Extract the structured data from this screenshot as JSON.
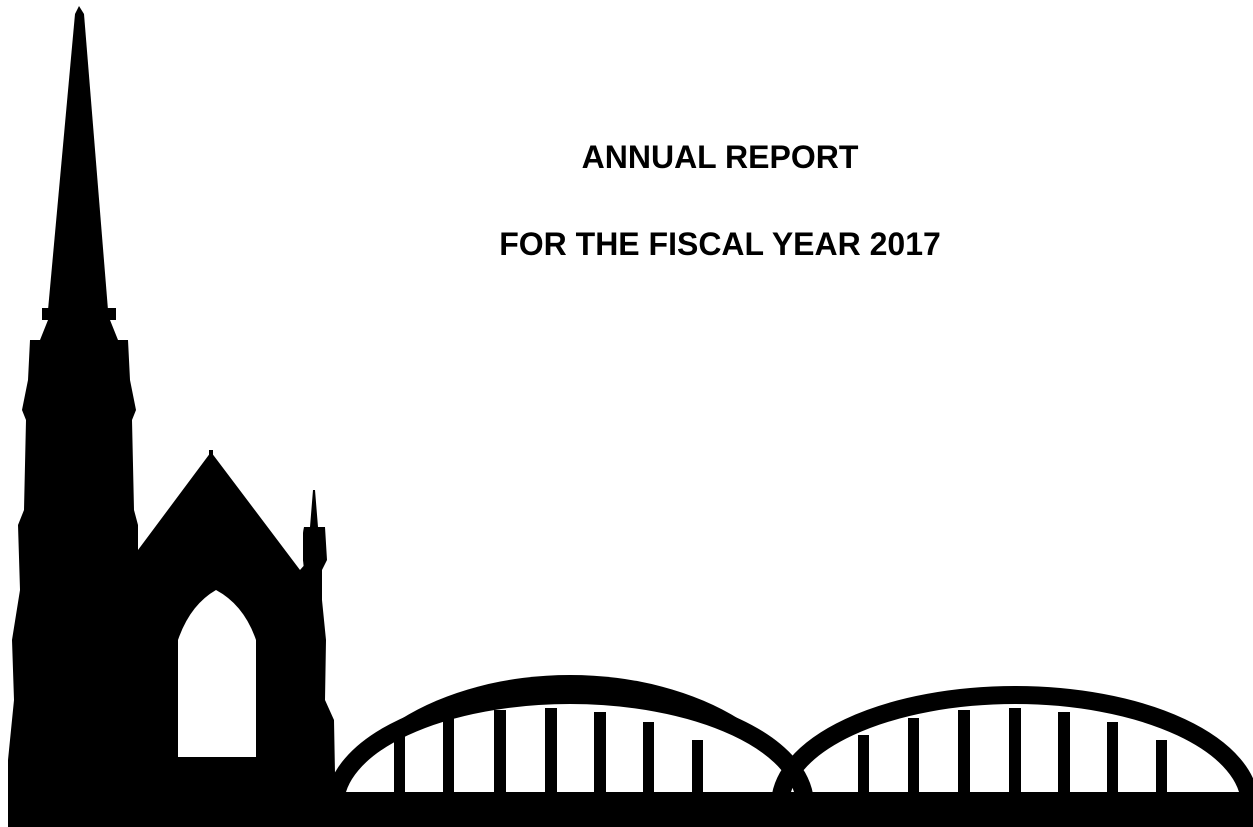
{
  "cover": {
    "title_line_1": "ANNUAL REPORT",
    "title_line_2": "FOR THE FISCAL YEAR 2017"
  },
  "illustration": {
    "icon": "church-and-bridge-silhouette",
    "color": "#000000"
  }
}
